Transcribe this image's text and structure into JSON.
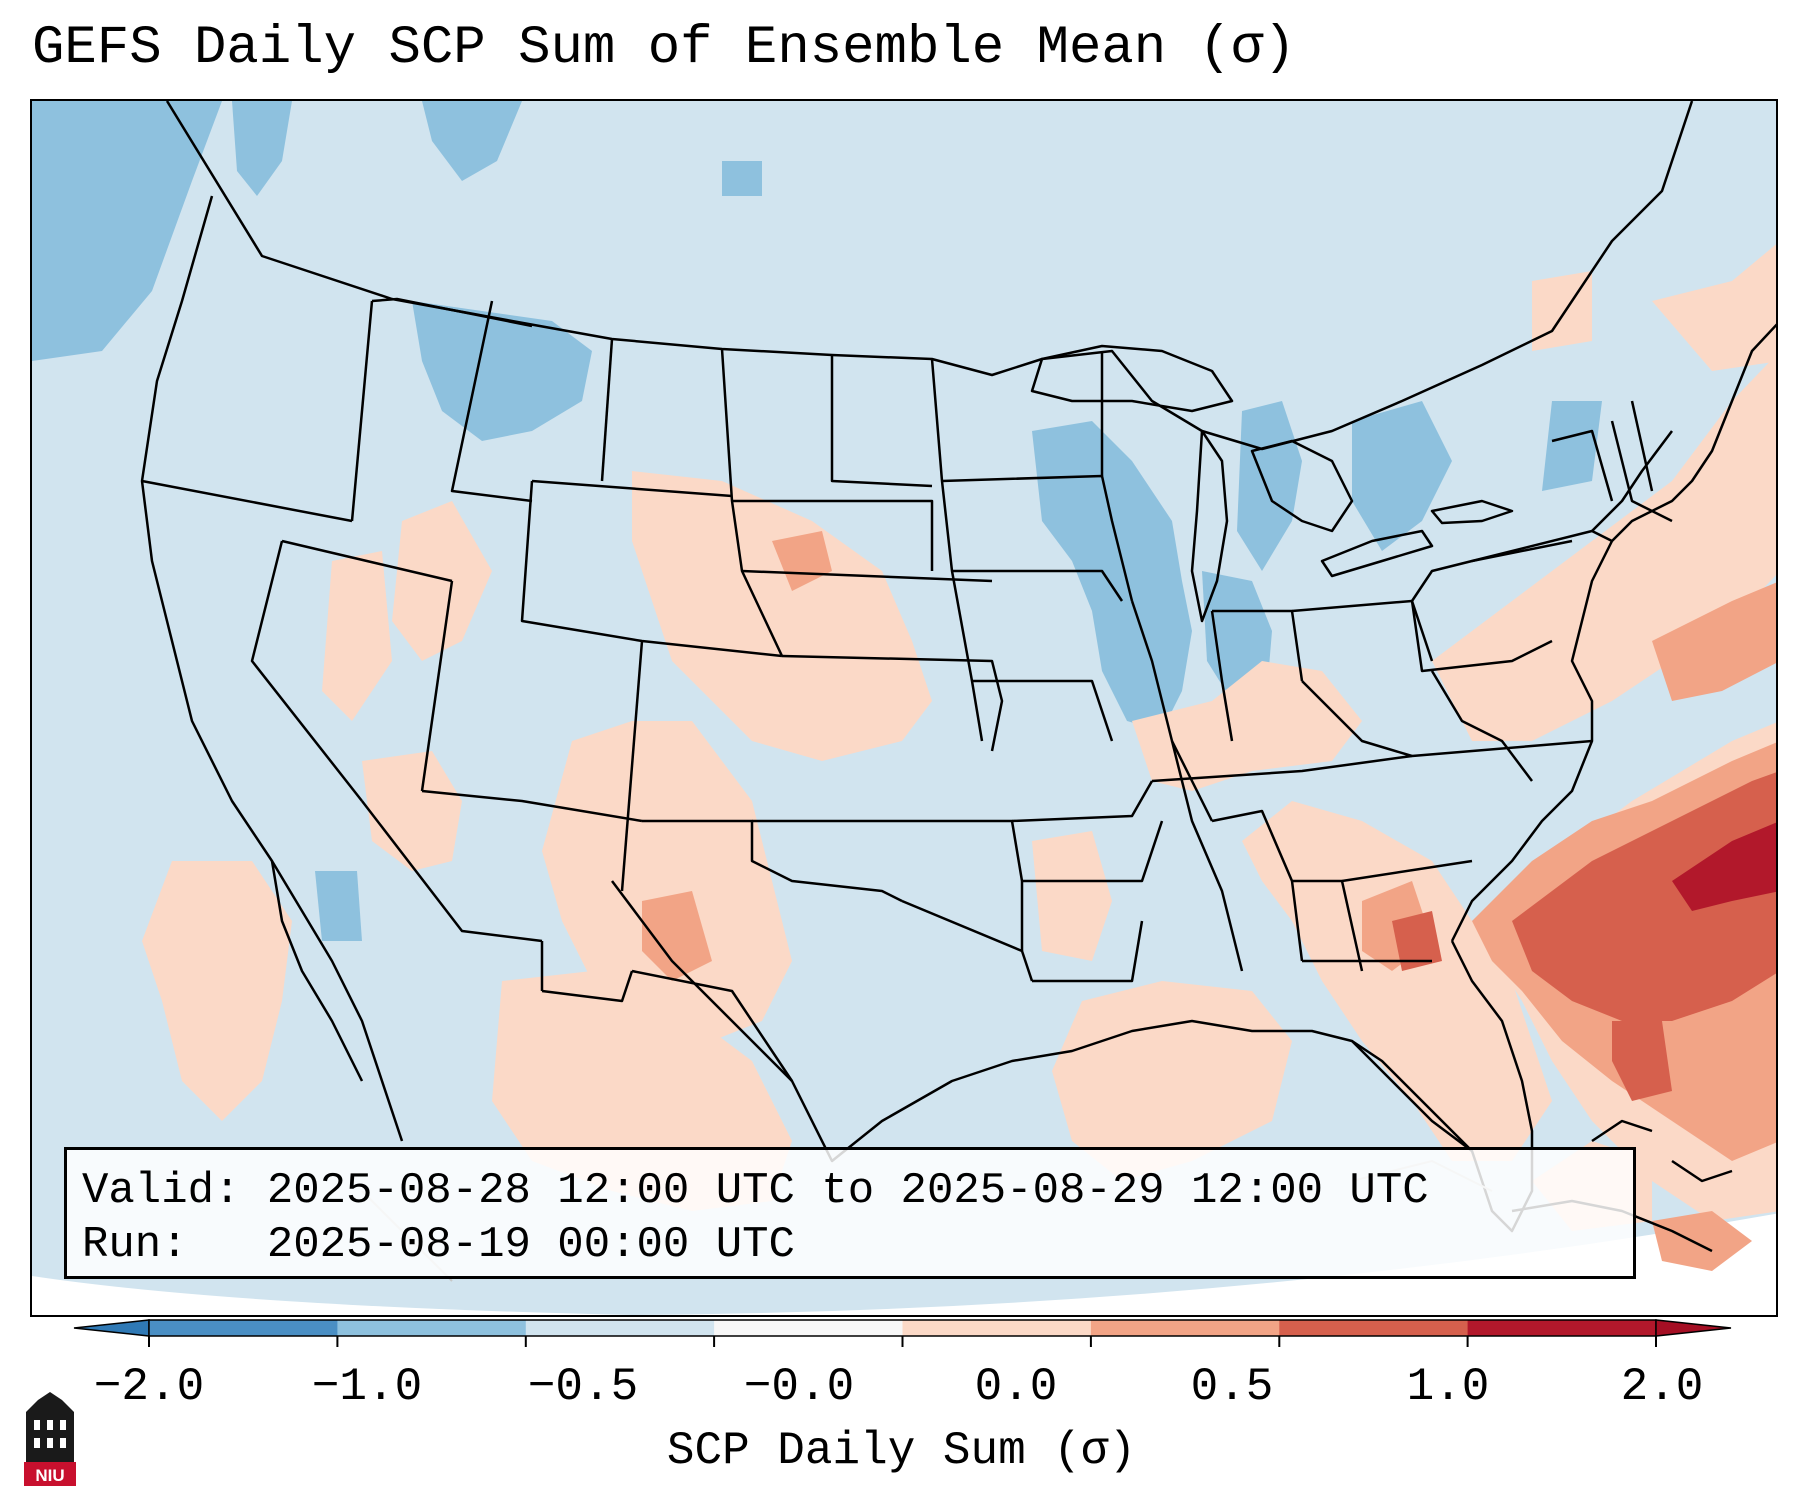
{
  "title": "GEFS Daily SCP Sum of Ensemble Mean (σ)",
  "info": {
    "valid_label": "Valid:",
    "valid_value": "2025-08-28 12:00 UTC to 2025-08-29 12:00 UTC",
    "run_label": "Run:",
    "run_value": "2025-08-19 00:00 UTC"
  },
  "colorbar": {
    "label": "SCP Daily Sum (σ)",
    "ticks": [
      "−2.0",
      "−1.0",
      "−0.5",
      "−0.0",
      "0.0",
      "0.5",
      "1.0",
      "2.0"
    ],
    "colors": [
      "#4a8fc4",
      "#8ec1de",
      "#d1e4ef",
      "#f7f7f7",
      "#fbd9c7",
      "#f2a486",
      "#d6604d",
      "#b2182b"
    ],
    "under_color": "#2f79b5",
    "over_color": "#a50f24"
  },
  "map": {
    "field": "SCP daily sum anomaly",
    "units": "σ",
    "base_color": "#d1e4ef"
  },
  "logo": {
    "text": "NIU",
    "color": "#c8102e"
  }
}
